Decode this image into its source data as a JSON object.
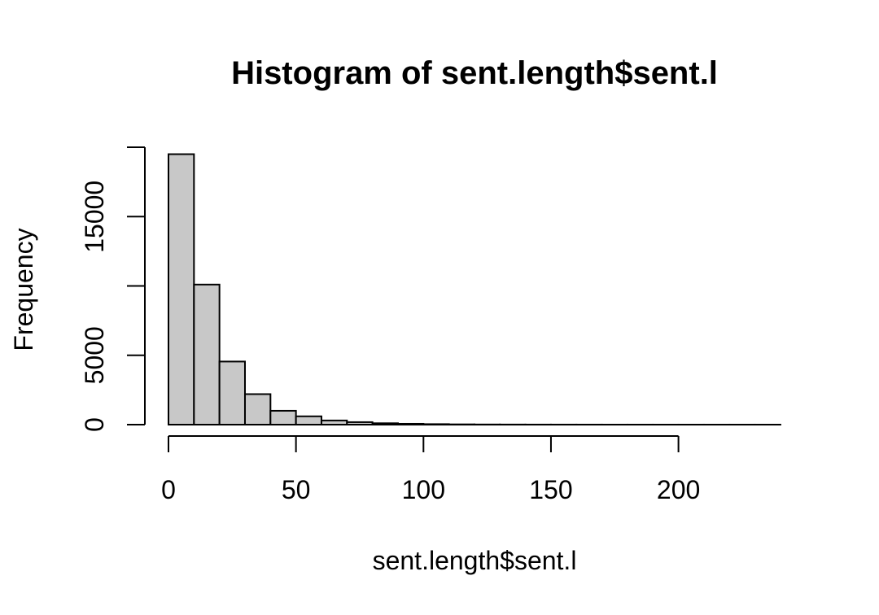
{
  "chart_data": {
    "type": "bar",
    "title": "Histogram of sent.length$sent.l",
    "xlabel": "sent.length$sent.l",
    "ylabel": "Frequency",
    "bins": [
      {
        "from": 0,
        "to": 10,
        "count": 19500
      },
      {
        "from": 10,
        "to": 20,
        "count": 10100
      },
      {
        "from": 20,
        "to": 30,
        "count": 4550
      },
      {
        "from": 30,
        "to": 40,
        "count": 2200
      },
      {
        "from": 40,
        "to": 50,
        "count": 1000
      },
      {
        "from": 50,
        "to": 60,
        "count": 600
      },
      {
        "from": 60,
        "to": 70,
        "count": 300
      },
      {
        "from": 70,
        "to": 80,
        "count": 180
      },
      {
        "from": 80,
        "to": 90,
        "count": 100
      },
      {
        "from": 90,
        "to": 100,
        "count": 60
      },
      {
        "from": 100,
        "to": 110,
        "count": 35
      },
      {
        "from": 110,
        "to": 120,
        "count": 20
      },
      {
        "from": 120,
        "to": 130,
        "count": 12
      },
      {
        "from": 130,
        "to": 140,
        "count": 8
      },
      {
        "from": 140,
        "to": 150,
        "count": 5
      },
      {
        "from": 150,
        "to": 160,
        "count": 4
      },
      {
        "from": 160,
        "to": 170,
        "count": 3
      },
      {
        "from": 170,
        "to": 180,
        "count": 2
      },
      {
        "from": 180,
        "to": 190,
        "count": 2
      },
      {
        "from": 190,
        "to": 200,
        "count": 1
      },
      {
        "from": 200,
        "to": 210,
        "count": 1
      },
      {
        "from": 210,
        "to": 220,
        "count": 1
      },
      {
        "from": 220,
        "to": 230,
        "count": 1
      },
      {
        "from": 230,
        "to": 240,
        "count": 1
      }
    ],
    "xlim": [
      0,
      240
    ],
    "ylim": [
      0,
      20000
    ],
    "x_ticks": [
      0,
      50,
      100,
      150,
      200
    ],
    "x_tick_labels": [
      "0",
      "50",
      "100",
      "150",
      "200"
    ],
    "y_ticks": [
      0,
      5000,
      10000,
      15000,
      20000
    ],
    "y_tick_labels": [
      "0",
      "5000",
      "",
      "15000",
      ""
    ],
    "grid": false,
    "colors": {
      "bar_fill": "#c8c8c8",
      "bar_stroke": "#000000"
    }
  }
}
